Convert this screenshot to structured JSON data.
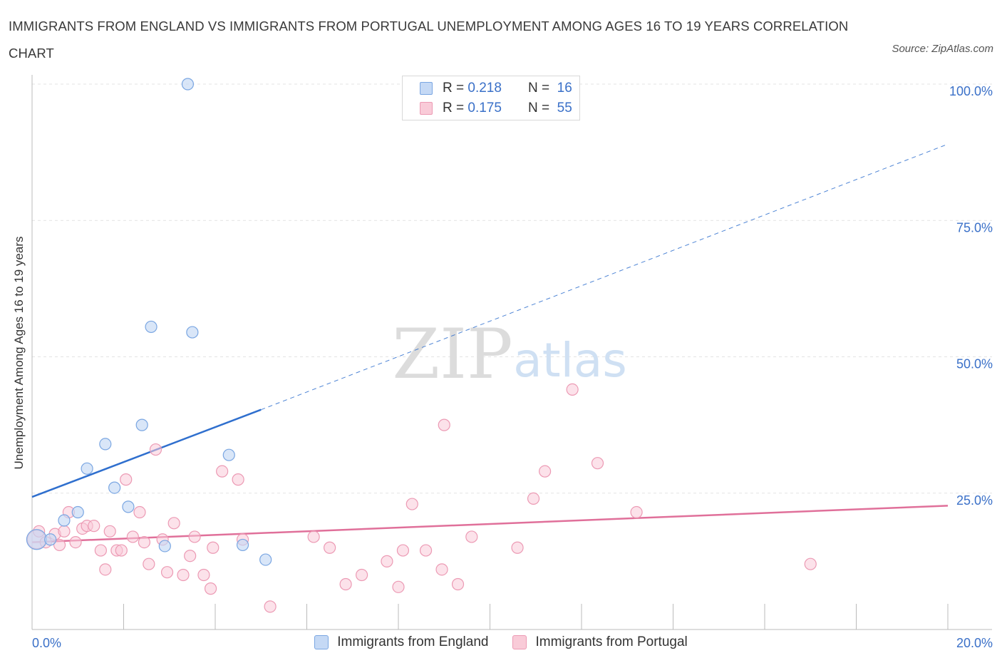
{
  "header": {
    "title": "IMMIGRANTS FROM ENGLAND VS IMMIGRANTS FROM PORTUGAL UNEMPLOYMENT AMONG AGES 16 TO 19 YEARS CORRELATION CHART",
    "source": "Source: ZipAtlas.com"
  },
  "watermark": {
    "zip": "ZIP",
    "atlas": "atlas"
  },
  "legend_top": {
    "rows": [
      {
        "r_label": "R = ",
        "r_value": "0.218",
        "n_label": "N = ",
        "n_value": "16"
      },
      {
        "r_label": "R = ",
        "r_value": "0.175",
        "n_label": "N = ",
        "n_value": "55"
      }
    ]
  },
  "colors": {
    "england_fill": "#c5d9f5",
    "england_stroke": "#7aa6e2",
    "england_line": "#2f6fce",
    "portugal_fill": "#f9cbd8",
    "portugal_stroke": "#ec9ab4",
    "portugal_line": "#e0709a",
    "axis_text": "#3a70c8",
    "grid": "#e3e3e3"
  },
  "chart_data": {
    "type": "scatter",
    "title": "IMMIGRANTS FROM ENGLAND VS IMMIGRANTS FROM PORTUGAL UNEMPLOYMENT AMONG AGES 16 TO 19 YEARS CORRELATION CHART",
    "xlabel": "",
    "ylabel": "Unemployment Among Ages 16 to 19 years",
    "xlim": [
      0,
      20
    ],
    "ylim": [
      0,
      100
    ],
    "x_tick_labels": [
      "0.0%",
      "20.0%"
    ],
    "y_tick_labels": [
      "100.0%",
      "75.0%",
      "50.0%",
      "25.0%"
    ],
    "y_ticks": [
      100,
      75,
      50,
      25
    ],
    "grid": true,
    "legend_position": "bottom",
    "series": [
      {
        "name": "Immigrants from England",
        "R": 0.218,
        "N": 16,
        "points": [
          [
            0.1,
            16.5
          ],
          [
            0.4,
            16.5
          ],
          [
            0.7,
            20
          ],
          [
            1.0,
            21.5
          ],
          [
            1.2,
            29.5
          ],
          [
            1.6,
            34
          ],
          [
            1.8,
            26
          ],
          [
            2.1,
            22.5
          ],
          [
            2.4,
            37.5
          ],
          [
            2.6,
            55.5
          ],
          [
            2.9,
            15.3
          ],
          [
            3.4,
            100
          ],
          [
            3.5,
            54.5
          ],
          [
            4.3,
            32
          ],
          [
            4.6,
            15.5
          ],
          [
            5.1,
            12.8
          ]
        ],
        "trend": {
          "x": [
            0,
            5.0
          ],
          "y": [
            24.3,
            40.3
          ],
          "dashed_to": [
            20,
            89
          ]
        }
      },
      {
        "name": "Immigrants from Portugal",
        "R": 0.175,
        "N": 55,
        "points": [
          [
            0.1,
            16.5
          ],
          [
            0.15,
            18
          ],
          [
            0.3,
            16
          ],
          [
            0.5,
            17.5
          ],
          [
            0.6,
            15.5
          ],
          [
            0.7,
            18
          ],
          [
            0.8,
            21.5
          ],
          [
            0.95,
            16
          ],
          [
            1.1,
            18.5
          ],
          [
            1.2,
            19
          ],
          [
            1.35,
            19
          ],
          [
            1.5,
            14.5
          ],
          [
            1.6,
            11
          ],
          [
            1.7,
            18
          ],
          [
            1.85,
            14.5
          ],
          [
            1.95,
            14.5
          ],
          [
            2.05,
            27.5
          ],
          [
            2.2,
            17
          ],
          [
            2.35,
            21.5
          ],
          [
            2.45,
            16
          ],
          [
            2.55,
            12
          ],
          [
            2.7,
            33
          ],
          [
            2.85,
            16.5
          ],
          [
            2.95,
            10.5
          ],
          [
            3.1,
            19.5
          ],
          [
            3.3,
            10
          ],
          [
            3.45,
            13.5
          ],
          [
            3.55,
            17
          ],
          [
            3.75,
            10
          ],
          [
            3.9,
            7.5
          ],
          [
            3.95,
            15
          ],
          [
            4.15,
            29
          ],
          [
            4.5,
            27.5
          ],
          [
            4.6,
            16.5
          ],
          [
            5.2,
            4.2
          ],
          [
            6.15,
            17
          ],
          [
            6.5,
            15
          ],
          [
            6.85,
            8.3
          ],
          [
            7.2,
            10
          ],
          [
            7.75,
            12.5
          ],
          [
            8.0,
            7.8
          ],
          [
            8.1,
            14.5
          ],
          [
            8.3,
            23
          ],
          [
            8.6,
            14.5
          ],
          [
            8.95,
            11
          ],
          [
            9.0,
            37.5
          ],
          [
            9.3,
            8.3
          ],
          [
            9.6,
            17
          ],
          [
            10.6,
            15
          ],
          [
            10.95,
            24
          ],
          [
            11.2,
            29
          ],
          [
            11.8,
            44
          ],
          [
            12.35,
            30.5
          ],
          [
            13.2,
            21.5
          ],
          [
            17.0,
            12
          ]
        ],
        "trend": {
          "x": [
            0,
            20
          ],
          "y": [
            16,
            22.7
          ]
        }
      }
    ]
  }
}
